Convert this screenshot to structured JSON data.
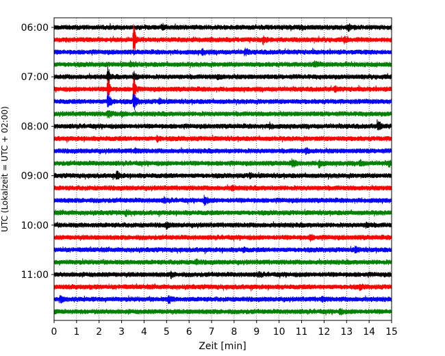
{
  "chart_data": {
    "type": "line",
    "title": "",
    "xlabel": "Zeit  [min]",
    "ylabel": "UTC (Lokalzeit = UTC + 02:00)",
    "xlim": [
      0,
      15
    ],
    "x_ticks": [
      "0",
      "1",
      "2",
      "3",
      "4",
      "5",
      "6",
      "7",
      "8",
      "9",
      "10",
      "11",
      "12",
      "13",
      "14",
      "15"
    ],
    "y_ticks": [
      "06:00",
      "07:00",
      "08:00",
      "09:00",
      "10:00",
      "11:00"
    ],
    "y_tick_hours": [
      6,
      7,
      8,
      9,
      10,
      11
    ],
    "time_range": [
      "06:00",
      "12:00"
    ],
    "trace_interval_min": 15,
    "grid": "vertical dotted",
    "legend": "none",
    "color_cycle": [
      "#000000",
      "#ff0000",
      "#0000ff",
      "#008000"
    ],
    "traces": [
      {
        "start": "06:00",
        "events": [
          {
            "t": 4.8,
            "amp": 0.35
          },
          {
            "t": 13.1,
            "amp": 0.4
          }
        ]
      },
      {
        "start": "06:15",
        "events": [
          {
            "t": 3.55,
            "amp": 3.0
          },
          {
            "t": 9.3,
            "amp": 0.45
          },
          {
            "t": 12.9,
            "amp": 0.3
          }
        ]
      },
      {
        "start": "06:30",
        "events": [
          {
            "t": 8.5,
            "amp": 0.35
          },
          {
            "t": 6.6,
            "amp": 0.3
          }
        ]
      },
      {
        "start": "06:45",
        "events": [
          {
            "t": 11.6,
            "amp": 0.35
          },
          {
            "t": 3.4,
            "amp": 0.3
          }
        ]
      },
      {
        "start": "07:00",
        "events": [
          {
            "t": 2.4,
            "amp": 1.8
          },
          {
            "t": 3.55,
            "amp": 0.6
          },
          {
            "t": 7.3,
            "amp": 0.3
          }
        ]
      },
      {
        "start": "07:15",
        "events": [
          {
            "t": 2.4,
            "amp": 2.4
          },
          {
            "t": 3.55,
            "amp": 2.4
          },
          {
            "t": 12.5,
            "amp": 0.3
          }
        ]
      },
      {
        "start": "07:30",
        "events": [
          {
            "t": 2.4,
            "amp": 1.3
          },
          {
            "t": 3.55,
            "amp": 1.2
          },
          {
            "t": 4.7,
            "amp": 0.3
          }
        ]
      },
      {
        "start": "07:45",
        "events": [
          {
            "t": 2.4,
            "amp": 0.5
          },
          {
            "t": 3.0,
            "amp": 0.3
          }
        ]
      },
      {
        "start": "08:00",
        "events": [
          {
            "t": 14.4,
            "amp": 0.7
          },
          {
            "t": 9.6,
            "amp": 0.3
          }
        ]
      },
      {
        "start": "08:15",
        "events": [
          {
            "t": 4.6,
            "amp": 0.35
          }
        ]
      },
      {
        "start": "08:30",
        "events": [
          {
            "t": 11.2,
            "amp": 0.3
          },
          {
            "t": 3.6,
            "amp": 0.25
          }
        ]
      },
      {
        "start": "08:45",
        "events": [
          {
            "t": 10.6,
            "amp": 0.5
          },
          {
            "t": 11.8,
            "amp": 0.5
          },
          {
            "t": 13.6,
            "amp": 0.35
          },
          {
            "t": 14.9,
            "amp": 0.35
          }
        ]
      },
      {
        "start": "09:00",
        "events": [
          {
            "t": 2.8,
            "amp": 0.55
          },
          {
            "t": 8.7,
            "amp": 0.25
          }
        ]
      },
      {
        "start": "09:15",
        "events": [
          {
            "t": 7.9,
            "amp": 0.25
          }
        ]
      },
      {
        "start": "09:30",
        "events": [
          {
            "t": 6.7,
            "amp": 0.6
          },
          {
            "t": 4.9,
            "amp": 0.25
          }
        ]
      },
      {
        "start": "09:45",
        "events": [
          {
            "t": 3.2,
            "amp": 0.25
          }
        ]
      },
      {
        "start": "10:00",
        "events": [
          {
            "t": 5.0,
            "amp": 0.35
          },
          {
            "t": 13.9,
            "amp": 0.3
          }
        ]
      },
      {
        "start": "10:15",
        "events": [
          {
            "t": 11.4,
            "amp": 0.3
          }
        ]
      },
      {
        "start": "10:30",
        "events": [
          {
            "t": 13.4,
            "amp": 0.35
          },
          {
            "t": 8.4,
            "amp": 0.25
          }
        ]
      },
      {
        "start": "10:45",
        "events": [
          {
            "t": 6.3,
            "amp": 0.25
          }
        ]
      },
      {
        "start": "11:00",
        "events": [
          {
            "t": 5.2,
            "amp": 0.3
          },
          {
            "t": 9.1,
            "amp": 0.25
          }
        ]
      },
      {
        "start": "11:15",
        "events": [
          {
            "t": 13.6,
            "amp": 0.25
          }
        ]
      },
      {
        "start": "11:30",
        "events": [
          {
            "t": 5.1,
            "amp": 0.5
          },
          {
            "t": 0.3,
            "amp": 0.35
          },
          {
            "t": 11.9,
            "amp": 0.25
          }
        ]
      },
      {
        "start": "11:45",
        "events": [
          {
            "t": 12.7,
            "amp": 0.3
          }
        ]
      }
    ]
  }
}
